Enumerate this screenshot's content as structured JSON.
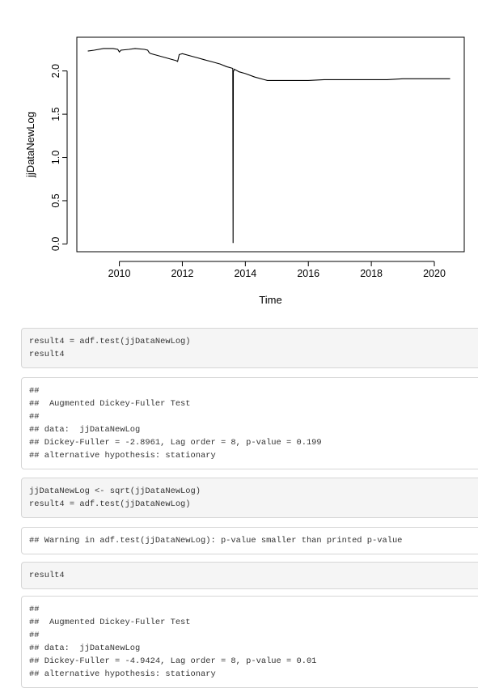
{
  "chart_data": {
    "type": "line",
    "title": "",
    "xlabel": "Time",
    "ylabel": "jjDataNewLog",
    "xlim": [
      2008.65,
      2020.95
    ],
    "ylim": [
      -0.09,
      2.39
    ],
    "x_ticks": [
      2010,
      2012,
      2014,
      2016,
      2018,
      2020
    ],
    "y_ticks": [
      0.0,
      0.5,
      1.0,
      1.5,
      2.0
    ],
    "x_tick_labels": [
      "2010",
      "2012",
      "2014",
      "2016",
      "2018",
      "2020"
    ],
    "y_tick_labels": [
      "0.0",
      "0.5",
      "1.0",
      "1.5",
      "2.0"
    ],
    "grid": false,
    "line_color": "#000000",
    "series": [
      {
        "x": [
          2009.0,
          2009.2,
          2009.5,
          2009.8,
          2009.95,
          2010.0,
          2010.05,
          2010.3,
          2010.5,
          2010.8,
          2010.9,
          2010.95,
          2011.0,
          2011.2,
          2011.5,
          2011.8,
          2011.85,
          2011.9,
          2012.0,
          2012.3,
          2012.5,
          2012.7,
          2012.9,
          2013.2,
          2013.4,
          2013.6,
          2013.61,
          2013.62,
          2013.65,
          2013.8,
          2014.0,
          2014.3,
          2014.6,
          2014.7,
          2014.8,
          2015.0,
          2015.5,
          2016.0,
          2016.5,
          2017.0,
          2017.5,
          2018.0,
          2018.5,
          2019.0,
          2019.5,
          2020.0,
          2020.5
        ],
        "y": [
          2.23,
          2.24,
          2.26,
          2.26,
          2.25,
          2.22,
          2.24,
          2.25,
          2.26,
          2.25,
          2.24,
          2.21,
          2.2,
          2.18,
          2.15,
          2.12,
          2.11,
          2.19,
          2.2,
          2.17,
          2.15,
          2.13,
          2.11,
          2.08,
          2.05,
          2.03,
          0.01,
          1.99,
          2.02,
          1.99,
          1.97,
          1.93,
          1.9,
          1.89,
          1.89,
          1.89,
          1.89,
          1.89,
          1.9,
          1.9,
          1.9,
          1.9,
          1.9,
          1.91,
          1.91,
          1.91,
          1.91
        ]
      }
    ]
  },
  "chunks": [
    {
      "kind": "code",
      "lines": [
        "result4 = adf.test(jjDataNewLog)",
        "result4"
      ]
    },
    {
      "kind": "out",
      "lines": [
        "##",
        "##  Augmented Dickey-Fuller Test",
        "##",
        "## data:  jjDataNewLog",
        "## Dickey-Fuller = -2.8961, Lag order = 8, p-value = 0.199",
        "## alternative hypothesis: stationary"
      ]
    },
    {
      "kind": "code",
      "lines": [
        "jjDataNewLog <- sqrt(jjDataNewLog)",
        "result4 = adf.test(jjDataNewLog)"
      ]
    },
    {
      "kind": "out",
      "lines": [
        "## Warning in adf.test(jjDataNewLog): p-value smaller than printed p-value"
      ]
    },
    {
      "kind": "code",
      "lines": [
        "result4"
      ]
    },
    {
      "kind": "out",
      "lines": [
        "##",
        "##  Augmented Dickey-Fuller Test",
        "##",
        "## data:  jjDataNewLog",
        "## Dickey-Fuller = -4.9424, Lag order = 8, p-value = 0.01",
        "## alternative hypothesis: stationary"
      ]
    }
  ]
}
